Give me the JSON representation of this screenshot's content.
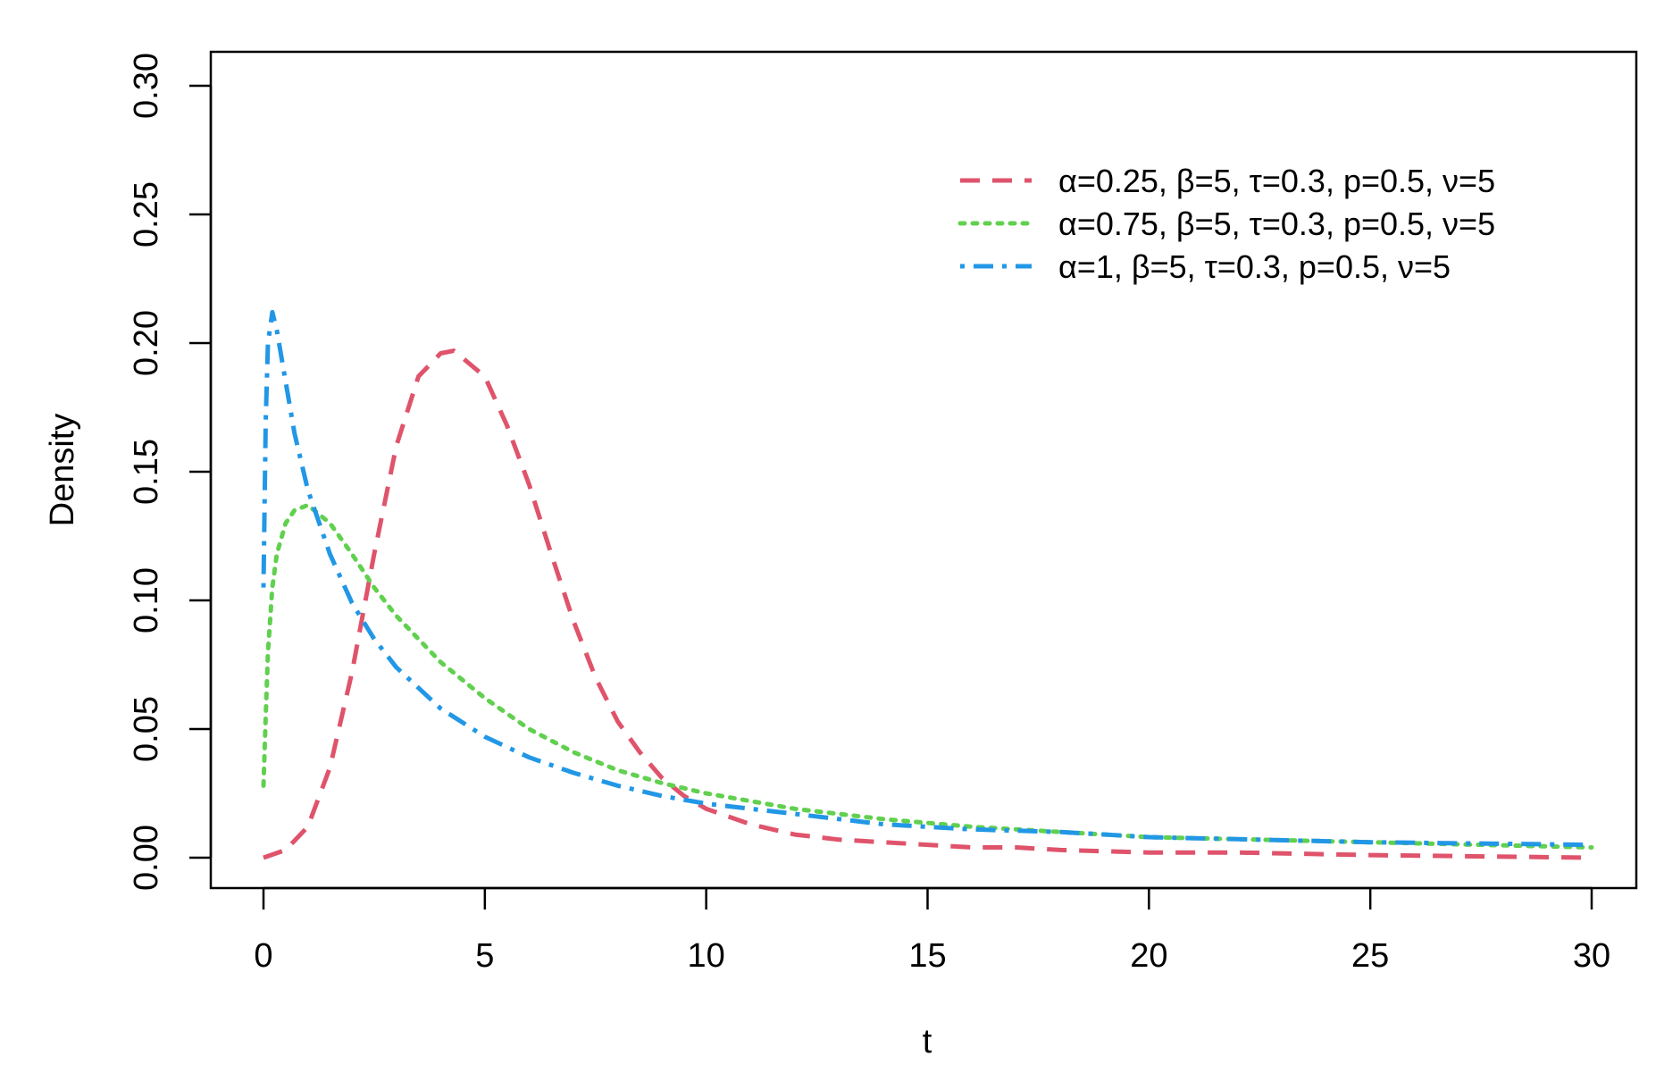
{
  "chart_data": {
    "type": "line",
    "title": "",
    "xlabel": "t",
    "ylabel": "Density",
    "xlim": [
      0,
      30
    ],
    "ylim": [
      0,
      0.3
    ],
    "xticks": [
      "0",
      "5",
      "10",
      "15",
      "20",
      "25",
      "30"
    ],
    "yticks": [
      "0.00",
      "0.05",
      "0.10",
      "0.15",
      "0.20",
      "0.25",
      "0.30"
    ],
    "grid": false,
    "legend_position": "top-right",
    "series": [
      {
        "name": "α=0.25, β=5, τ=0.3, p=0.5, ν=5",
        "color": "#DF536B",
        "line_style": "dashed",
        "x": [
          0,
          0.5,
          1,
          1.5,
          2,
          2.5,
          3,
          3.5,
          4,
          4.3,
          5,
          5.5,
          6,
          6.5,
          7,
          7.5,
          8,
          8.5,
          9,
          9.5,
          10,
          11,
          12,
          13,
          14,
          15,
          16,
          17,
          18,
          20,
          22,
          25,
          30
        ],
        "y": [
          0.0,
          0.003,
          0.012,
          0.035,
          0.072,
          0.118,
          0.16,
          0.187,
          0.196,
          0.197,
          0.187,
          0.168,
          0.145,
          0.118,
          0.092,
          0.07,
          0.053,
          0.041,
          0.031,
          0.024,
          0.019,
          0.013,
          0.009,
          0.007,
          0.006,
          0.005,
          0.004,
          0.004,
          0.003,
          0.002,
          0.002,
          0.001,
          0.0
        ]
      },
      {
        "name": "α=0.75, β=5, τ=0.3, p=0.5, ν=5",
        "color": "#61D04F",
        "line_style": "dotted",
        "x": [
          0,
          0.05,
          0.1,
          0.2,
          0.3,
          0.5,
          0.7,
          1,
          1.5,
          2,
          2.5,
          3,
          4,
          5,
          6,
          7,
          8,
          9,
          10,
          12,
          14,
          16,
          18,
          20,
          25,
          30
        ],
        "y": [
          0.028,
          0.055,
          0.08,
          0.105,
          0.118,
          0.13,
          0.135,
          0.137,
          0.13,
          0.118,
          0.105,
          0.094,
          0.076,
          0.062,
          0.05,
          0.041,
          0.034,
          0.029,
          0.025,
          0.019,
          0.015,
          0.012,
          0.01,
          0.008,
          0.006,
          0.004
        ]
      },
      {
        "name": "α=1, β=5, τ=0.3, p=0.5, ν=5",
        "color": "#2297E6",
        "line_style": "dotdash",
        "x": [
          0,
          0.05,
          0.1,
          0.2,
          0.3,
          0.5,
          0.7,
          1,
          1.5,
          2,
          2.5,
          3,
          4,
          5,
          6,
          7,
          8,
          9,
          10,
          12,
          14,
          16,
          18,
          20,
          25,
          30
        ],
        "y": [
          0.105,
          0.17,
          0.2,
          0.212,
          0.205,
          0.185,
          0.165,
          0.143,
          0.118,
          0.099,
          0.085,
          0.074,
          0.058,
          0.047,
          0.039,
          0.033,
          0.028,
          0.024,
          0.021,
          0.017,
          0.013,
          0.011,
          0.01,
          0.008,
          0.006,
          0.005
        ]
      }
    ]
  }
}
